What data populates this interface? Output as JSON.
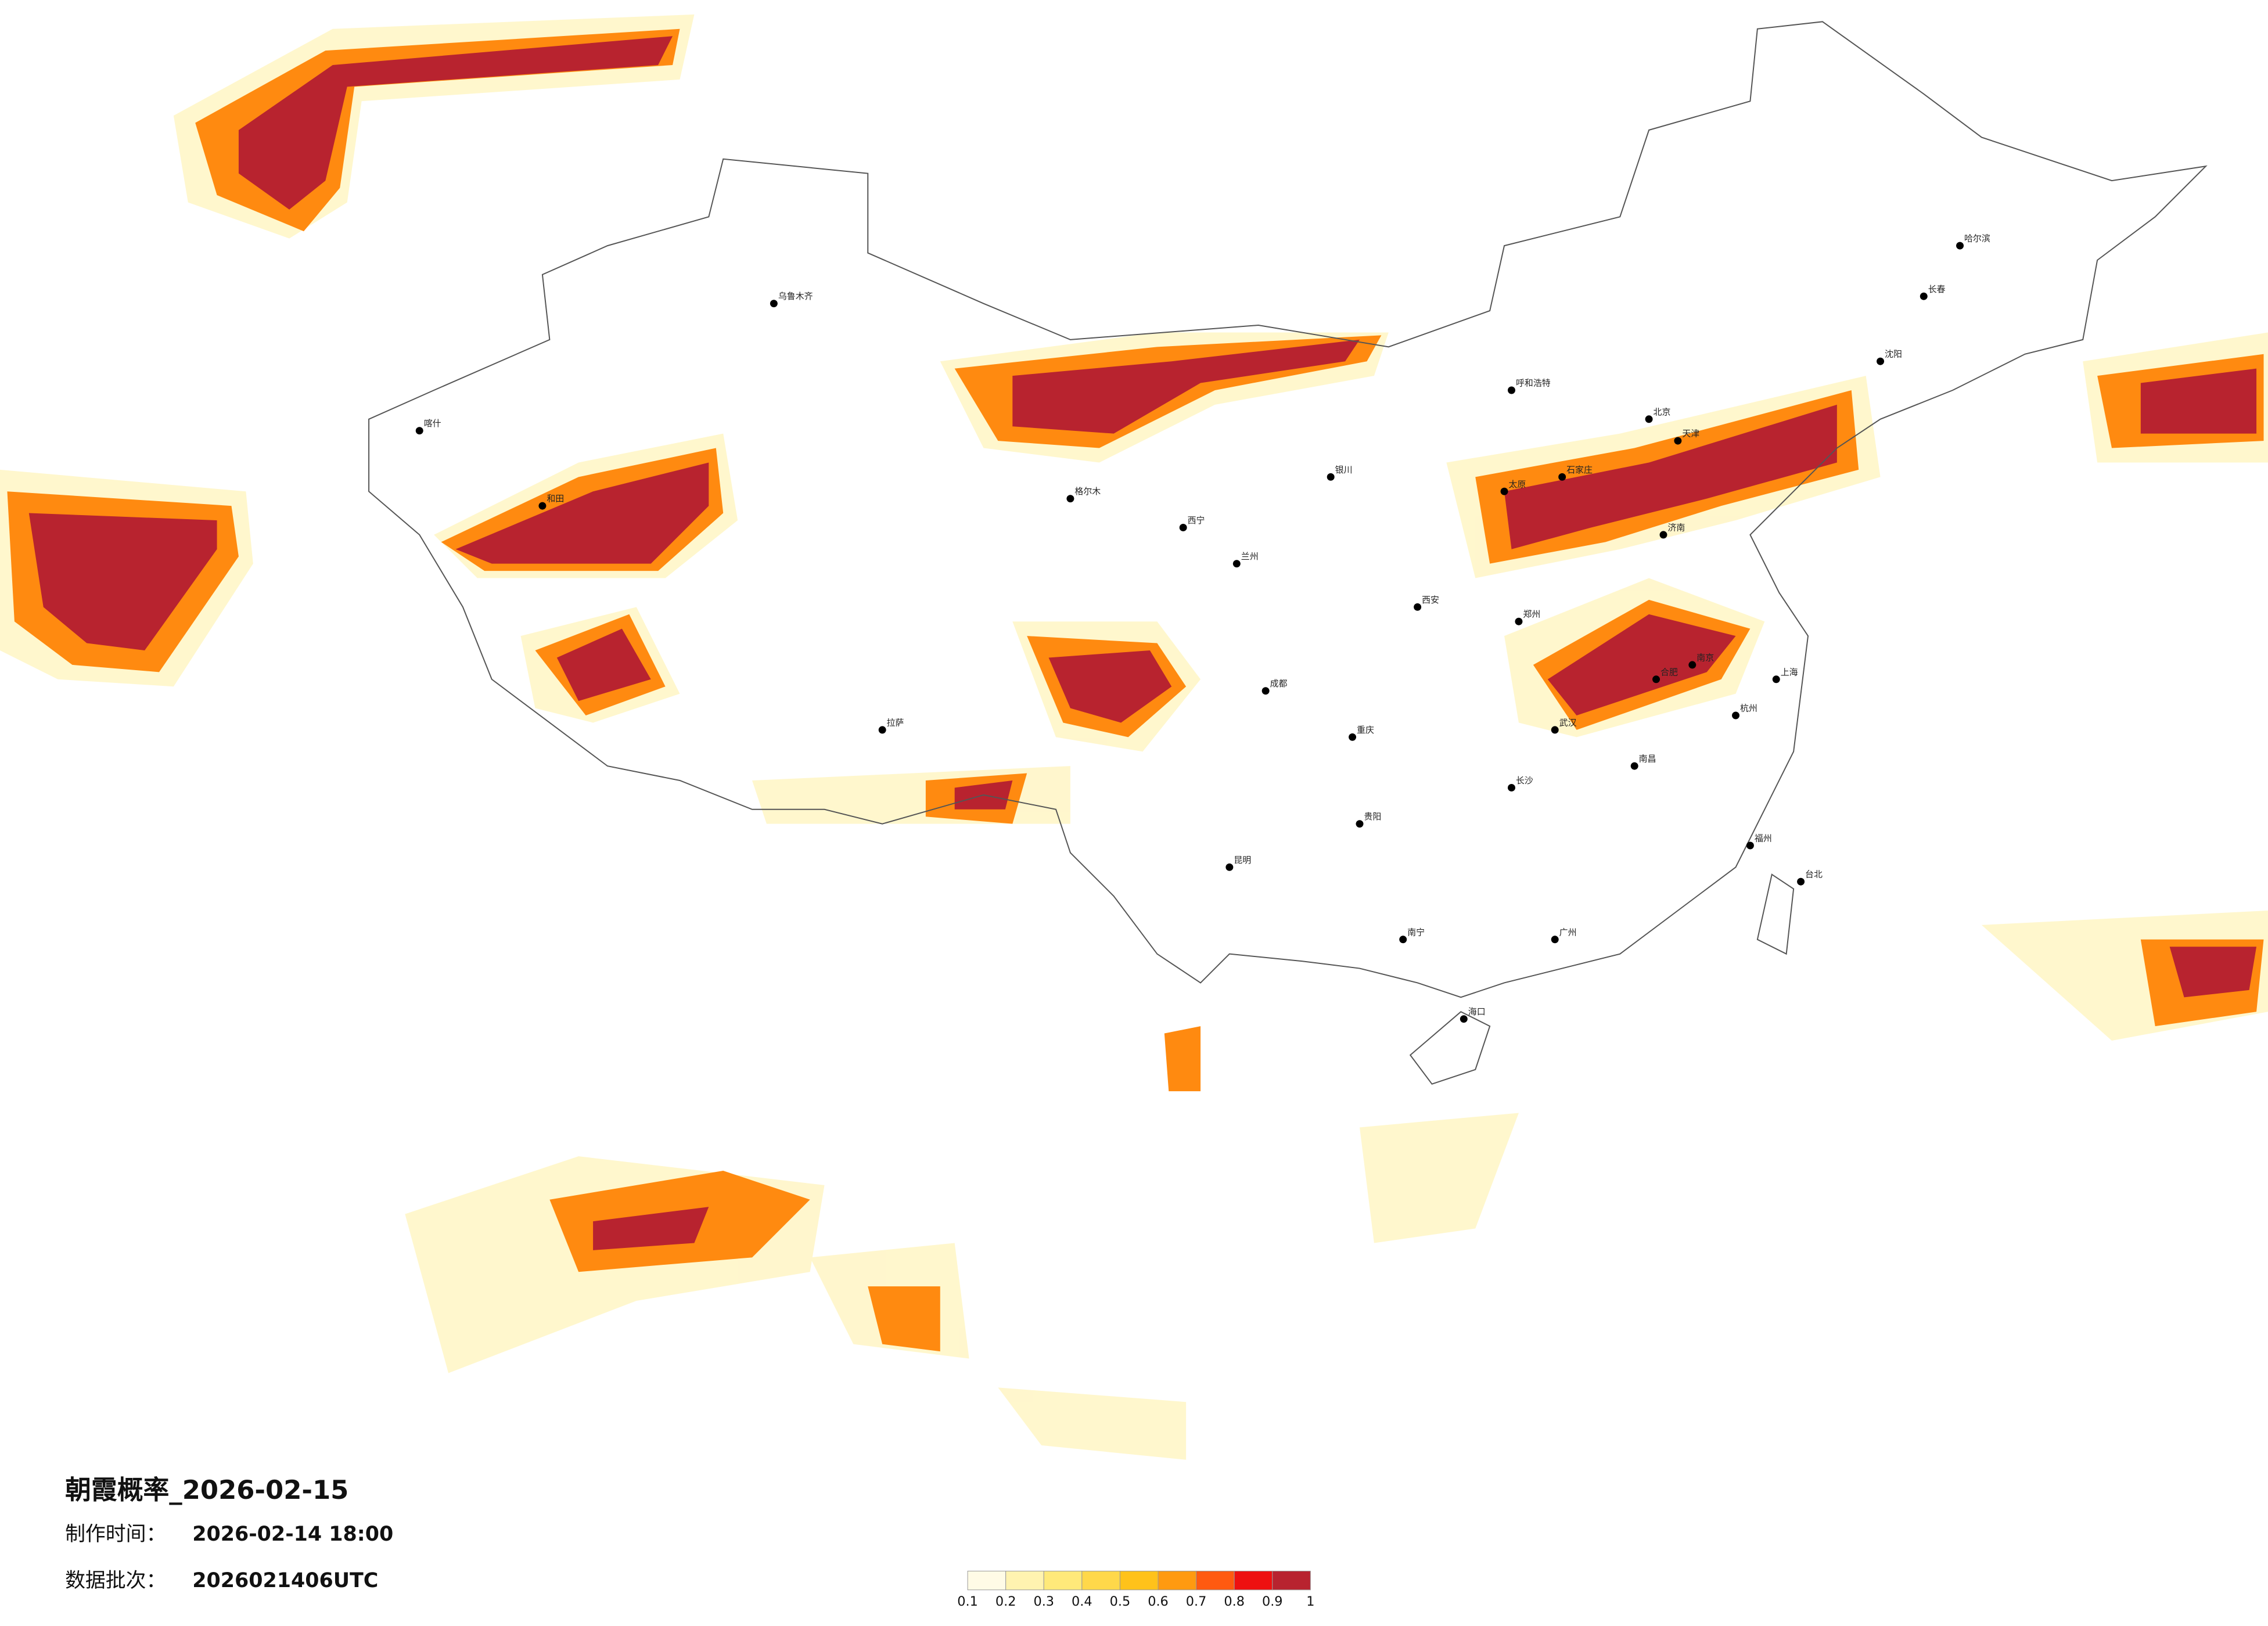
{
  "title": "朝霞概率_2026-02-15",
  "made_label": "制作时间：",
  "made_time": "2026-02-14 18:00",
  "batch_label": "数据批次：",
  "batch": "2026021406UTC",
  "colorbar": {
    "colors": [
      "#fffbe6",
      "#fff3b0",
      "#ffe97a",
      "#ffd84a",
      "#ffc21a",
      "#ff9a10",
      "#ff5a10",
      "#ee1010",
      "#b8232f"
    ],
    "ticks": [
      0.1,
      0.2,
      0.3,
      0.4,
      0.5,
      0.6,
      0.7,
      0.8,
      0.9,
      1
    ]
  },
  "cities": [
    "北京",
    "天津",
    "上海",
    "广州",
    "重庆",
    "成都",
    "武汉",
    "西安",
    "拉萨",
    "乌鲁木齐",
    "哈尔滨",
    "长春",
    "沈阳",
    "昆明",
    "贵阳",
    "南宁",
    "兰州",
    "西宁",
    "银川",
    "呼和浩特",
    "郑州",
    "济南",
    "南京",
    "杭州",
    "福州",
    "长沙",
    "南昌",
    "合肥",
    "海口",
    "太原",
    "石家庄",
    "台北",
    "喀什",
    "和田",
    "格尔木"
  ]
}
